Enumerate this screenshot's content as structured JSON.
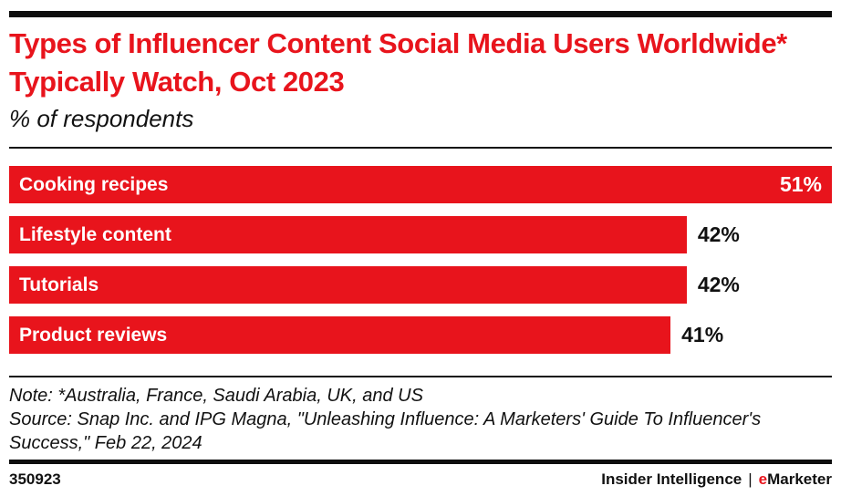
{
  "title": "Types of Influencer Content Social Media Users Worldwide* Typically Watch, Oct 2023",
  "subtitle": "% of respondents",
  "chart_data": {
    "type": "bar",
    "orientation": "horizontal",
    "categories": [
      "Cooking recipes",
      "Lifestyle content",
      "Tutorials",
      "Product reviews"
    ],
    "values": [
      51,
      42,
      42,
      41
    ],
    "value_labels": [
      "51%",
      "42%",
      "42%",
      "41%"
    ],
    "unit": "%",
    "xlim": [
      0,
      51
    ],
    "bar_color": "#e8141c",
    "grid": false,
    "legend": false,
    "value_label_style": "max value inside bar (white), others outside bar (black)"
  },
  "note": "Note: *Australia, France, Saudi Arabia, UK, and US",
  "source": "Source: Snap Inc. and IPG Magna, \"Unleashing Influence: A Marketers' Guide To Influencer's Success,\" Feb 22, 2024",
  "footer": {
    "chart_id": "350923",
    "branding": {
      "left": "Insider Intelligence",
      "separator": "|",
      "right_prefix": "e",
      "right_rest": "Marketer"
    }
  },
  "colors": {
    "accent_red": "#e8141c",
    "text_black": "#111111",
    "background": "#ffffff"
  }
}
